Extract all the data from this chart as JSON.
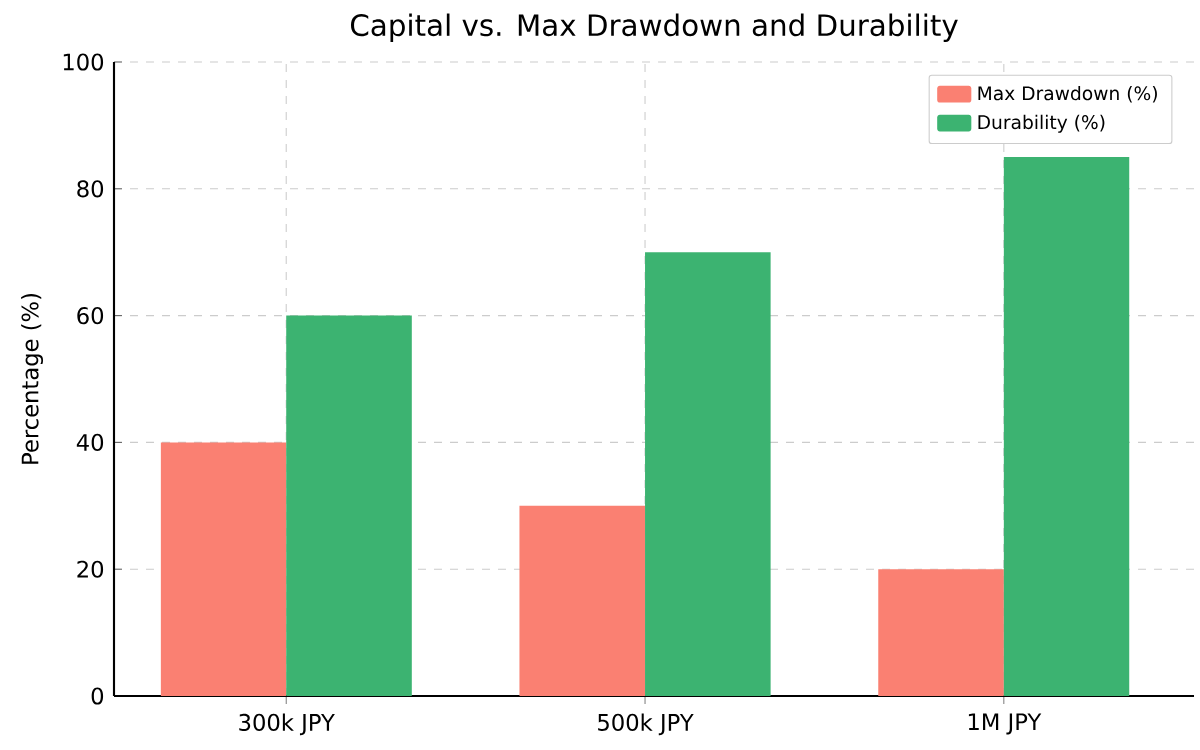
{
  "chart_data": {
    "type": "bar",
    "title": "Capital vs. Max Drawdown and Durability",
    "ylabel": "Percentage (%)",
    "categories": [
      "300k JPY",
      "500k JPY",
      "1M JPY"
    ],
    "series": [
      {
        "name": "Max Drawdown (%)",
        "color": "#fa8072",
        "values": [
          40,
          30,
          20
        ]
      },
      {
        "name": "Durability (%)",
        "color": "#3cb371",
        "values": [
          60,
          70,
          85
        ]
      }
    ],
    "ylim": [
      0,
      100
    ],
    "yticks": [
      0,
      20,
      40,
      60,
      80,
      100
    ],
    "grid": true,
    "legend": "top right"
  }
}
